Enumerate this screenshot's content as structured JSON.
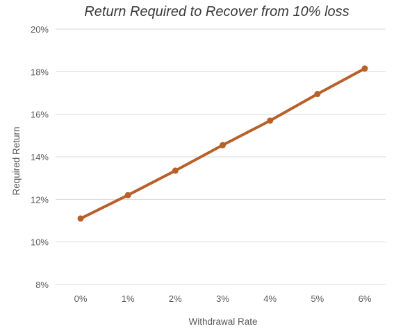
{
  "chart_data": {
    "type": "line",
    "title": "Return Required to Recover from 10% loss",
    "xlabel": "Withdrawal Rate",
    "ylabel": "Required Return",
    "categories": [
      "0%",
      "1%",
      "2%",
      "3%",
      "4%",
      "5%",
      "6%"
    ],
    "y_tick_labels": [
      "8%",
      "10%",
      "12%",
      "14%",
      "16%",
      "18%",
      "20%"
    ],
    "ylim": [
      8,
      20
    ],
    "y_ticks": [
      8,
      10,
      12,
      14,
      16,
      18,
      20
    ],
    "grid": true,
    "series": [
      {
        "values": [
          11.1,
          12.2,
          13.35,
          14.55,
          15.7,
          16.95,
          18.15
        ],
        "color": "#b8602a"
      }
    ]
  }
}
